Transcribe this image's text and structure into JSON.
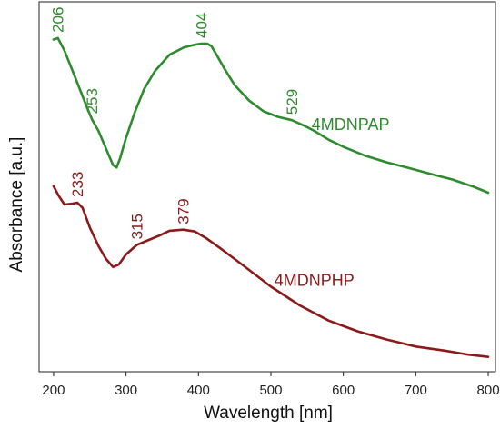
{
  "chart_data": {
    "type": "line",
    "xlabel": "Wavelength [nm]",
    "ylabel": "Absorbance [a.u.]",
    "xlim": [
      180,
      810
    ],
    "ylim": [
      0,
      1
    ],
    "xticks": [
      200,
      300,
      400,
      500,
      600,
      700,
      800
    ],
    "yticks": [],
    "grid": false,
    "legend": "inline labels",
    "series": [
      {
        "name": "4MDNPAP",
        "color": "#2e8b2e",
        "x": [
          200,
          206,
          215,
          230,
          245,
          253,
          262,
          272,
          282,
          287,
          292,
          300,
          312,
          325,
          340,
          360,
          380,
          395,
          404,
          412,
          418,
          425,
          435,
          450,
          470,
          490,
          510,
          529,
          545,
          560,
          580,
          600,
          630,
          660,
          690,
          720,
          750,
          780,
          800
        ],
        "y": [
          0.898,
          0.902,
          0.868,
          0.795,
          0.72,
          0.682,
          0.651,
          0.605,
          0.559,
          0.552,
          0.578,
          0.632,
          0.701,
          0.764,
          0.813,
          0.857,
          0.877,
          0.884,
          0.887,
          0.887,
          0.88,
          0.857,
          0.822,
          0.775,
          0.733,
          0.704,
          0.689,
          0.68,
          0.666,
          0.651,
          0.627,
          0.608,
          0.584,
          0.566,
          0.551,
          0.535,
          0.52,
          0.5,
          0.484
        ]
      },
      {
        "name": "4MDNPHP",
        "color": "#8b1a1a",
        "x": [
          200,
          207,
          215,
          225,
          233,
          240,
          250,
          262,
          272,
          282,
          290,
          300,
          315,
          330,
          345,
          360,
          379,
          395,
          410,
          430,
          460,
          500,
          540,
          580,
          620,
          660,
          700,
          740,
          770,
          800
        ],
        "y": [
          0.502,
          0.476,
          0.452,
          0.454,
          0.457,
          0.443,
          0.39,
          0.34,
          0.306,
          0.283,
          0.29,
          0.317,
          0.343,
          0.355,
          0.367,
          0.381,
          0.384,
          0.379,
          0.362,
          0.334,
          0.29,
          0.23,
          0.179,
          0.138,
          0.109,
          0.087,
          0.068,
          0.057,
          0.047,
          0.04
        ]
      }
    ],
    "annotations": [
      {
        "series": 0,
        "text": "206",
        "x": 206
      },
      {
        "series": 0,
        "text": "253",
        "x": 253
      },
      {
        "series": 0,
        "text": "404",
        "x": 404
      },
      {
        "series": 0,
        "text": "529",
        "x": 529
      },
      {
        "series": 1,
        "text": "233",
        "x": 233
      },
      {
        "series": 1,
        "text": "315",
        "x": 315
      },
      {
        "series": 1,
        "text": "379",
        "x": 379
      }
    ]
  }
}
